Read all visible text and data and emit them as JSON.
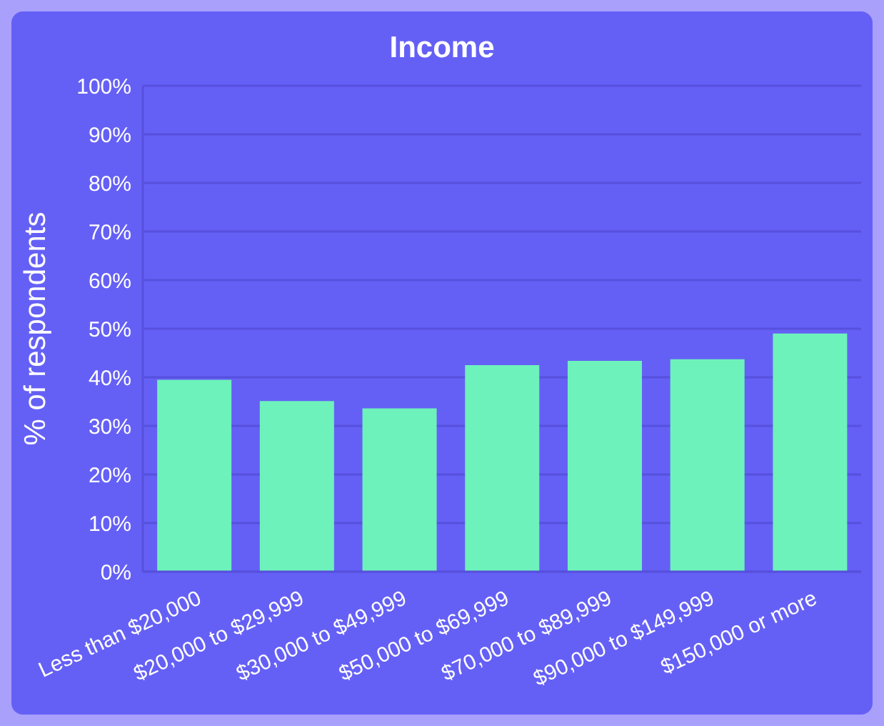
{
  "chart_data": {
    "type": "bar",
    "title": "Income",
    "ylabel": "% of respondents",
    "categories": [
      "Less than $20,000",
      "$20,000 to $29,999",
      "$30,000 to $49,999",
      "$50,000 to $69,999",
      "$70,000 to $89,999",
      "$90,000 to $149,999",
      "$150,000 or more"
    ],
    "values": [
      39.5,
      35.1,
      33.6,
      42.5,
      43.4,
      43.7,
      49.0
    ],
    "color": "#6ef2bb",
    "ylim": [
      0,
      100
    ],
    "yticks": [
      {
        "value": 0,
        "label": "0%"
      },
      {
        "value": 10,
        "label": "10%"
      },
      {
        "value": 20,
        "label": "20%"
      },
      {
        "value": 30,
        "label": "30%"
      },
      {
        "value": 40,
        "label": "40%"
      },
      {
        "value": 50,
        "label": "50%"
      },
      {
        "value": 60,
        "label": "60%"
      },
      {
        "value": 70,
        "label": "70%"
      },
      {
        "value": 80,
        "label": "80%"
      },
      {
        "value": 90,
        "label": "90%"
      },
      {
        "value": 100,
        "label": "100%"
      }
    ],
    "grid": "y"
  }
}
